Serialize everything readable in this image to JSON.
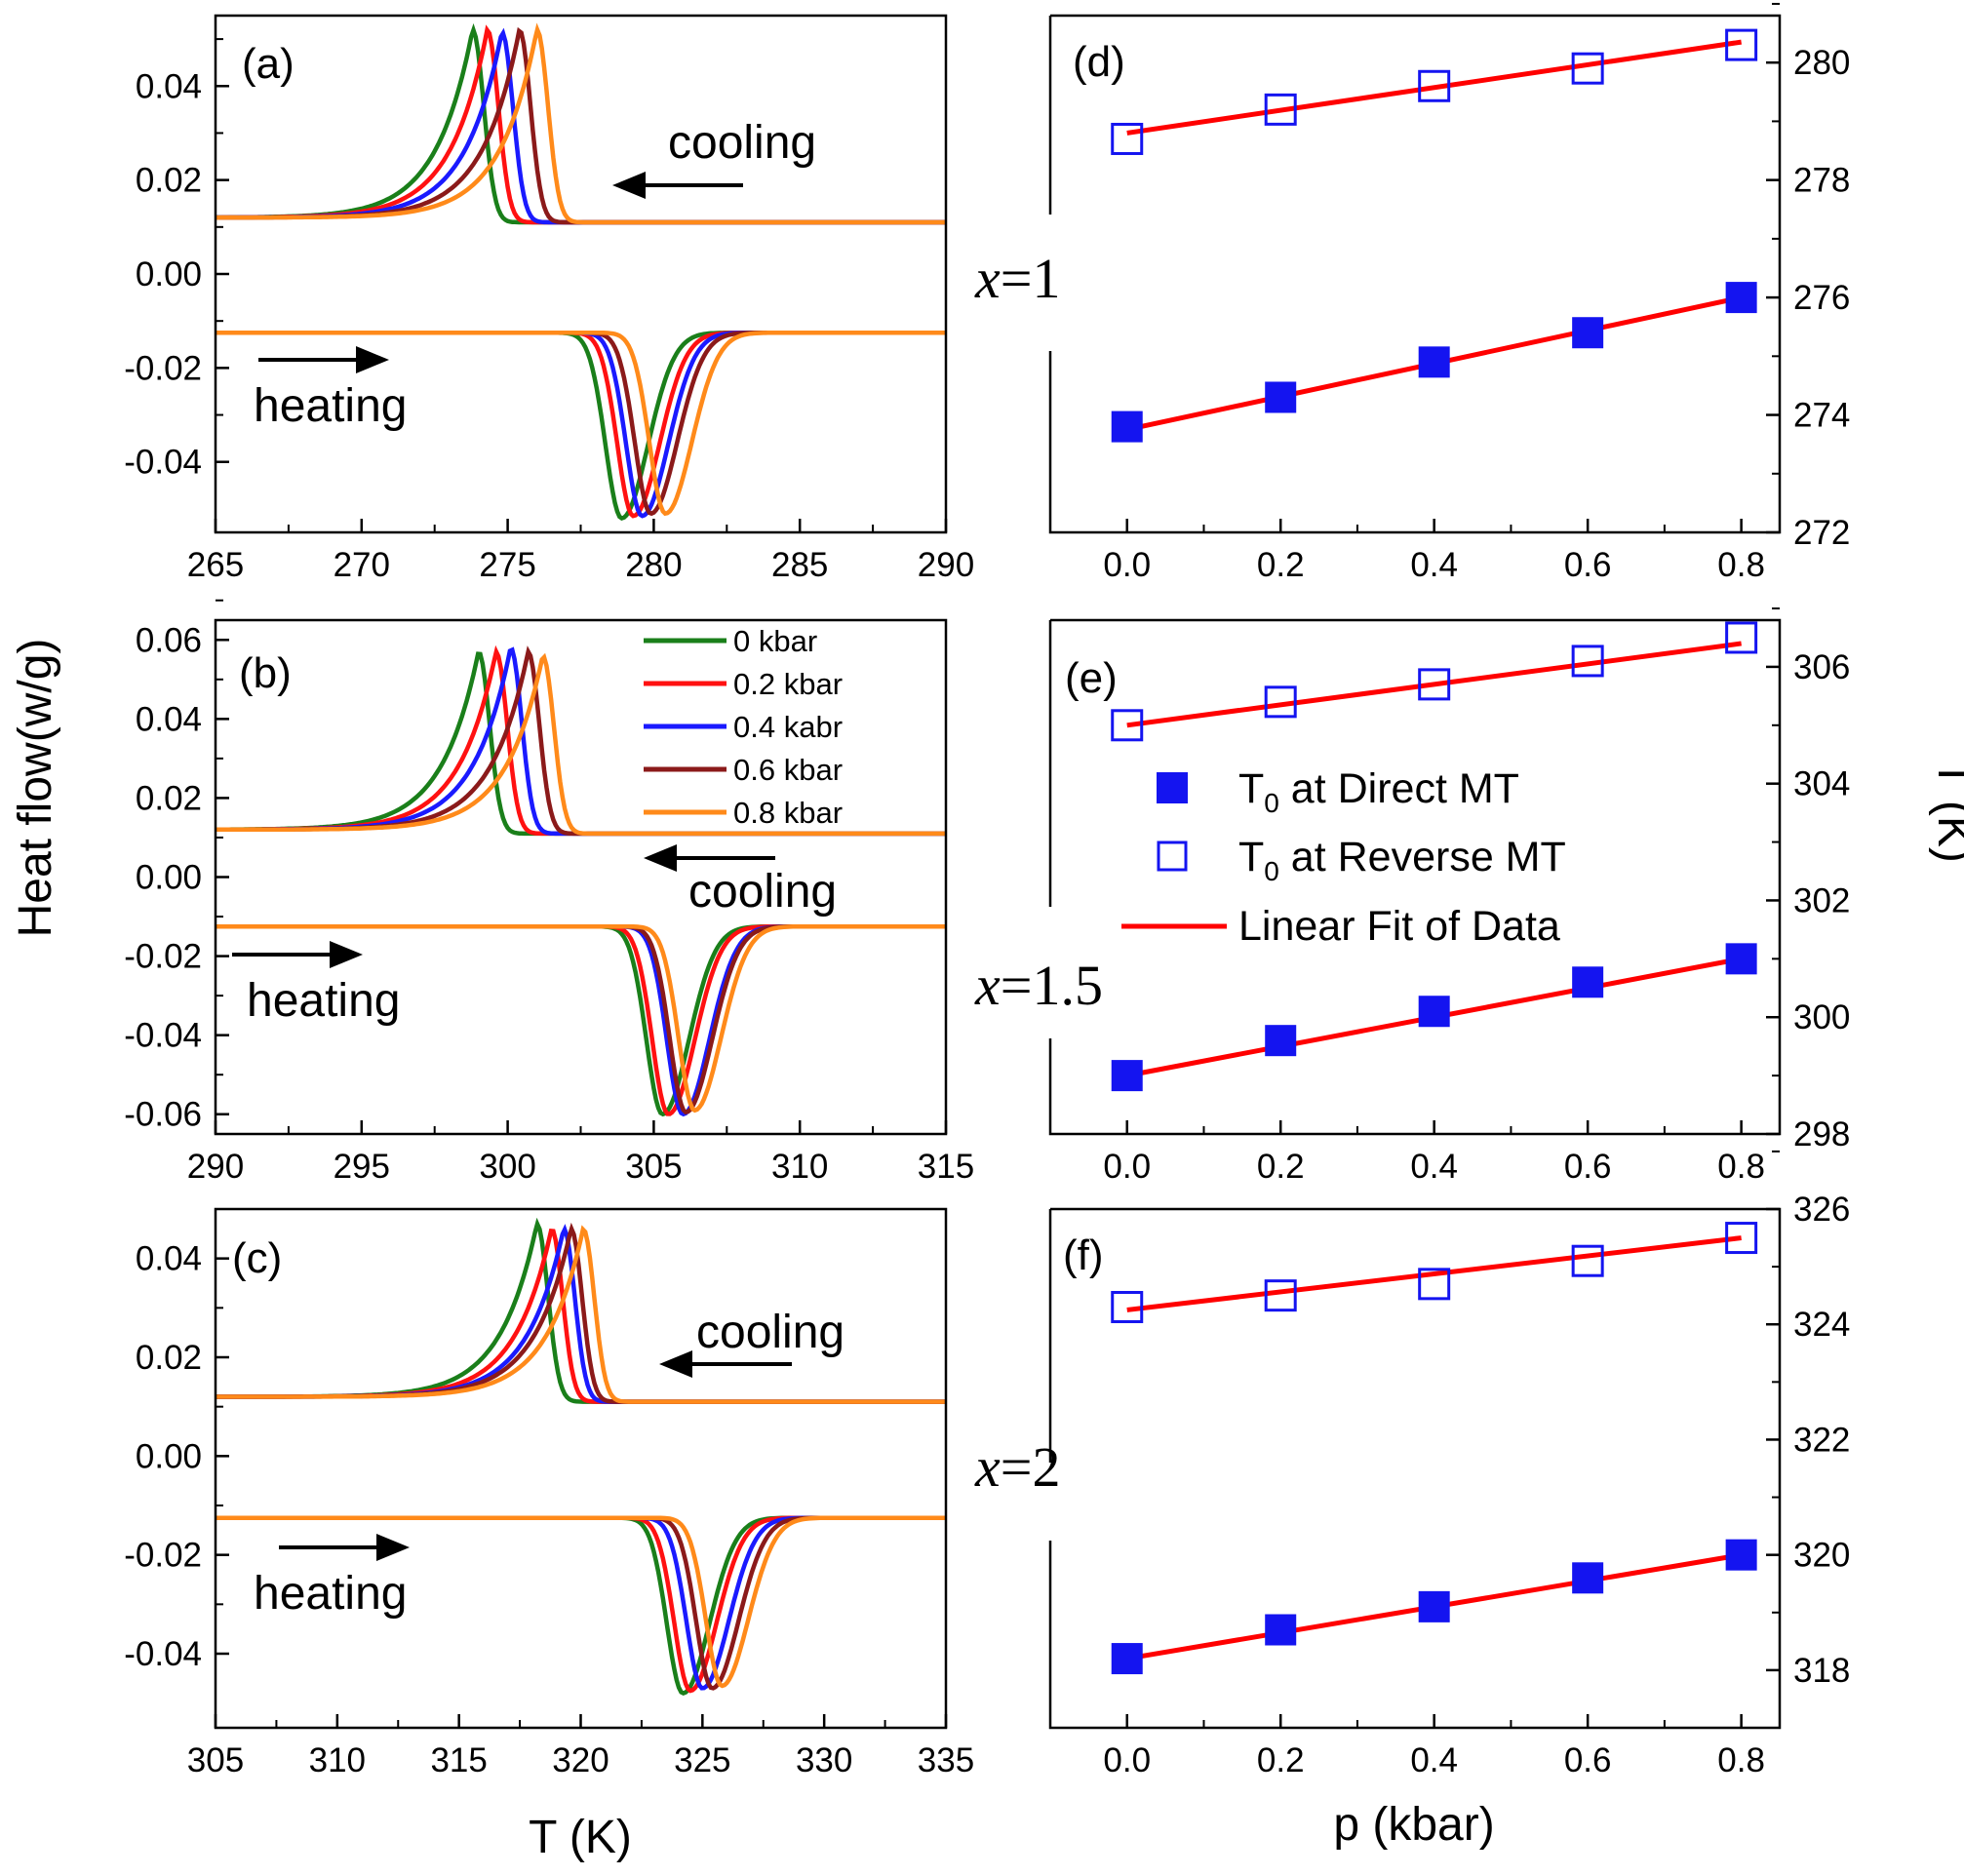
{
  "figure": {
    "y_label_left": "Heat flow(w/g)",
    "x_label_left": "T (K)",
    "x_label_right": "p (kbar)",
    "y_label_right": "T (K)",
    "composition_labels": [
      {
        "var": "x",
        "rest": "=1"
      },
      {
        "var": "x",
        "rest": "=1.5"
      },
      {
        "var": "x",
        "rest": "=2"
      }
    ],
    "pressure_legend": [
      {
        "label": "0 kbar",
        "color": "#1a7f1a"
      },
      {
        "label": "0.2 kbar",
        "color": "#ff1111"
      },
      {
        "label": "0.4 kabr",
        "color": "#1a1aff"
      },
      {
        "label": "0.6 kbar",
        "color": "#8b1a1a"
      },
      {
        "label": "0.8 kbar",
        "color": "#ff8a1a"
      }
    ],
    "fit_legend": {
      "direct_main": "T",
      "direct_sub": "0",
      "direct_rest": " at Direct MT",
      "reverse_main": "T",
      "reverse_sub": "0",
      "reverse_rest": " at Reverse MT",
      "fit": "Linear Fit of Data"
    },
    "colors": {
      "marker": "#1414f0",
      "fit": "#ff0000",
      "axis": "#000000"
    }
  },
  "chart_data": [
    {
      "id": "a",
      "label": "(a)",
      "type": "line",
      "xlabel": "T (K)",
      "ylabel": "Heat flow(w/g)",
      "xlim": [
        265,
        290
      ],
      "ylim": [
        -0.055,
        0.055
      ],
      "xticks": [
        "265",
        "270",
        "275",
        "280",
        "285",
        "290"
      ],
      "yticks": [
        "-0.04",
        "-0.02",
        "0.00",
        "0.02",
        "0.04"
      ],
      "annotations": [
        "cooling",
        "heating"
      ],
      "series": [
        {
          "name": "0 kbar",
          "color": "#1a7f1a",
          "peak_T": 273.8,
          "peak": 0.052,
          "dip_T": 278.9,
          "dip": -0.052
        },
        {
          "name": "0.2 kbar",
          "color": "#ff1111",
          "peak_T": 274.3,
          "peak": 0.052,
          "dip_T": 279.3,
          "dip": -0.0515
        },
        {
          "name": "0.4 kabr",
          "color": "#1a1aff",
          "peak_T": 274.8,
          "peak": 0.0515,
          "dip_T": 279.6,
          "dip": -0.0515
        },
        {
          "name": "0.6 kbar",
          "color": "#8b1a1a",
          "peak_T": 275.4,
          "peak": 0.052,
          "dip_T": 279.9,
          "dip": -0.051
        },
        {
          "name": "0.8 kbar",
          "color": "#ff8a1a",
          "peak_T": 276.0,
          "peak": 0.052,
          "dip_T": 280.4,
          "dip": -0.051
        }
      ]
    },
    {
      "id": "b",
      "label": "(b)",
      "type": "line",
      "xlabel": "T (K)",
      "ylabel": "Heat flow(w/g)",
      "xlim": [
        290,
        315
      ],
      "ylim": [
        -0.065,
        0.065
      ],
      "xticks": [
        "290",
        "295",
        "300",
        "305",
        "310",
        "315"
      ],
      "yticks": [
        "-0.06",
        "-0.04",
        "-0.02",
        "0.00",
        "0.02",
        "0.04",
        "0.06"
      ],
      "annotations": [
        "cooling",
        "heating"
      ],
      "series": [
        {
          "name": "0 kbar",
          "color": "#1a7f1a",
          "peak_T": 299.0,
          "peak": 0.057,
          "dip_T": 305.3,
          "dip": -0.06
        },
        {
          "name": "0.2 kbar",
          "color": "#ff1111",
          "peak_T": 299.6,
          "peak": 0.057,
          "dip_T": 305.5,
          "dip": -0.06
        },
        {
          "name": "0.4 kabr",
          "color": "#1a1aff",
          "peak_T": 300.1,
          "peak": 0.058,
          "dip_T": 306.0,
          "dip": -0.06
        },
        {
          "name": "0.6 kbar",
          "color": "#8b1a1a",
          "peak_T": 300.7,
          "peak": 0.057,
          "dip_T": 306.1,
          "dip": -0.0595
        },
        {
          "name": "0.8 kbar",
          "color": "#ff8a1a",
          "peak_T": 301.2,
          "peak": 0.056,
          "dip_T": 306.4,
          "dip": -0.059
        }
      ]
    },
    {
      "id": "c",
      "label": "(c)",
      "type": "line",
      "xlabel": "T (K)",
      "ylabel": "Heat flow(w/g)",
      "xlim": [
        305,
        335
      ],
      "ylim": [
        -0.055,
        0.05
      ],
      "xticks": [
        "305",
        "310",
        "315",
        "320",
        "325",
        "330",
        "335"
      ],
      "yticks": [
        "-0.04",
        "-0.02",
        "0.00",
        "0.02",
        "0.04"
      ],
      "annotations": [
        "cooling",
        "heating"
      ],
      "series": [
        {
          "name": "0 kbar",
          "color": "#1a7f1a",
          "peak_T": 318.2,
          "peak": 0.047,
          "dip_T": 324.2,
          "dip": -0.048
        },
        {
          "name": "0.2 kbar",
          "color": "#ff1111",
          "peak_T": 318.8,
          "peak": 0.046,
          "dip_T": 324.5,
          "dip": -0.0475
        },
        {
          "name": "0.4 kabr",
          "color": "#1a1aff",
          "peak_T": 319.3,
          "peak": 0.046,
          "dip_T": 325.0,
          "dip": -0.047
        },
        {
          "name": "0.6 kbar",
          "color": "#8b1a1a",
          "peak_T": 319.6,
          "peak": 0.046,
          "dip_T": 325.4,
          "dip": -0.047
        },
        {
          "name": "0.8 kbar",
          "color": "#ff8a1a",
          "peak_T": 320.1,
          "peak": 0.046,
          "dip_T": 325.8,
          "dip": -0.0465
        }
      ]
    },
    {
      "id": "d",
      "label": "(d)",
      "type": "scatter",
      "xlabel": "p (kbar)",
      "ylabel": "T (K)",
      "xlim": [
        -0.1,
        0.85
      ],
      "ylim": [
        272,
        280.8
      ],
      "xticks": [
        "0.0",
        "0.2",
        "0.4",
        "0.6",
        "0.8"
      ],
      "yticks": [
        "272",
        "274",
        "276",
        "278",
        "280"
      ],
      "x": [
        0.0,
        0.2,
        0.4,
        0.6,
        0.8
      ],
      "series": [
        {
          "name": "T0 at Reverse MT",
          "marker": "open-square",
          "values": [
            278.7,
            279.2,
            279.6,
            279.9,
            280.3
          ],
          "fit": [
            278.8,
            280.35
          ]
        },
        {
          "name": "T0 at Direct MT",
          "marker": "filled-square",
          "values": [
            273.8,
            274.3,
            274.9,
            275.4,
            276.0
          ],
          "fit": [
            273.75,
            276.0
          ]
        }
      ]
    },
    {
      "id": "e",
      "label": "(e)",
      "type": "scatter",
      "xlabel": "p (kbar)",
      "ylabel": "T (K)",
      "xlim": [
        -0.1,
        0.85
      ],
      "ylim": [
        298,
        306.8
      ],
      "xticks": [
        "0.0",
        "0.2",
        "0.4",
        "0.6",
        "0.8"
      ],
      "yticks": [
        "298",
        "300",
        "302",
        "304",
        "306"
      ],
      "x": [
        0.0,
        0.2,
        0.4,
        0.6,
        0.8
      ],
      "series": [
        {
          "name": "T0 at Reverse MT",
          "marker": "open-square",
          "values": [
            305.0,
            305.4,
            305.7,
            306.1,
            306.5
          ],
          "fit": [
            305.0,
            306.4
          ]
        },
        {
          "name": "T0 at Direct MT",
          "marker": "filled-square",
          "values": [
            299.0,
            299.6,
            300.1,
            300.6,
            301.0
          ],
          "fit": [
            299.0,
            301.0
          ]
        }
      ]
    },
    {
      "id": "f",
      "label": "(f)",
      "type": "scatter",
      "xlabel": "p (kbar)",
      "ylabel": "T (K)",
      "xlim": [
        -0.1,
        0.85
      ],
      "ylim": [
        317,
        326
      ],
      "xticks": [
        "0.0",
        "0.2",
        "0.4",
        "0.6",
        "0.8"
      ],
      "yticks": [
        "318",
        "320",
        "322",
        "324",
        "326"
      ],
      "x": [
        0.0,
        0.2,
        0.4,
        0.6,
        0.8
      ],
      "series": [
        {
          "name": "T0 at Reverse MT",
          "marker": "open-square",
          "values": [
            324.3,
            324.5,
            324.7,
            325.1,
            325.5
          ],
          "fit": [
            324.25,
            325.5
          ]
        },
        {
          "name": "T0 at Direct MT",
          "marker": "filled-square",
          "values": [
            318.2,
            318.7,
            319.1,
            319.6,
            320.0
          ],
          "fit": [
            318.2,
            320.0
          ]
        }
      ]
    }
  ]
}
